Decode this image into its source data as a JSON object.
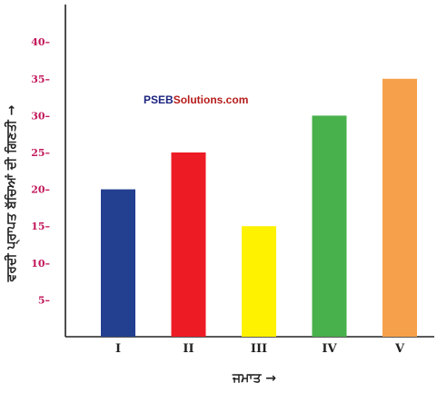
{
  "chart_data": {
    "type": "bar",
    "categories": [
      "I",
      "II",
      "III",
      "IV",
      "V"
    ],
    "values": [
      20,
      25,
      15,
      30,
      35
    ],
    "colors": [
      "#233f8f",
      "#ed1c24",
      "#fff200",
      "#48b14b",
      "#f7a04b"
    ],
    "title": "",
    "xlabel": "ਜਮਾਤ →",
    "ylabel": "ਵਰਦੀ ਪ੍ਰਾਪਤ ਬੱਚਿਆਂ ਦੀ ਗਿਣਤੀ →",
    "ylim": [
      0,
      45
    ],
    "yticks": [
      5,
      10,
      15,
      20,
      25,
      30,
      35,
      40
    ],
    "ytick_labels": [
      "5–",
      "10–",
      "15–",
      "20–",
      "25–",
      "30–",
      "35–",
      "40–"
    ],
    "grid": false,
    "legend": "none"
  },
  "watermark": {
    "part_a": "PSEB",
    "part_b": "Solutions.com"
  }
}
